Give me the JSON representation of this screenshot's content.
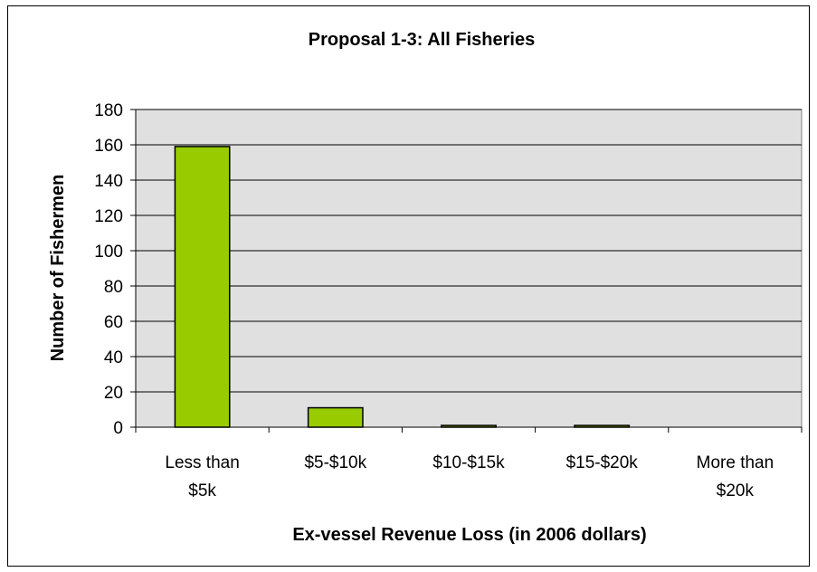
{
  "chart_data": {
    "type": "bar",
    "title": "Proposal 1-3: All Fisheries",
    "xlabel": "Ex-vessel Revenue Loss (in 2006 dollars)",
    "ylabel": "Number of Fishermen",
    "categories": [
      [
        "Less than",
        "$5k"
      ],
      [
        "$5-$10k"
      ],
      [
        "$10-$15k"
      ],
      [
        "$15-$20k"
      ],
      [
        "More than",
        "$20k"
      ]
    ],
    "values": [
      159,
      11,
      1,
      1,
      0
    ],
    "ylim": [
      0,
      180
    ],
    "yticks": [
      0,
      20,
      40,
      60,
      80,
      100,
      120,
      140,
      160,
      180
    ],
    "grid": true,
    "colors": {
      "bar": "#99cc00",
      "plot_bg": "#e0e0e0",
      "gridline": "#000000"
    }
  }
}
